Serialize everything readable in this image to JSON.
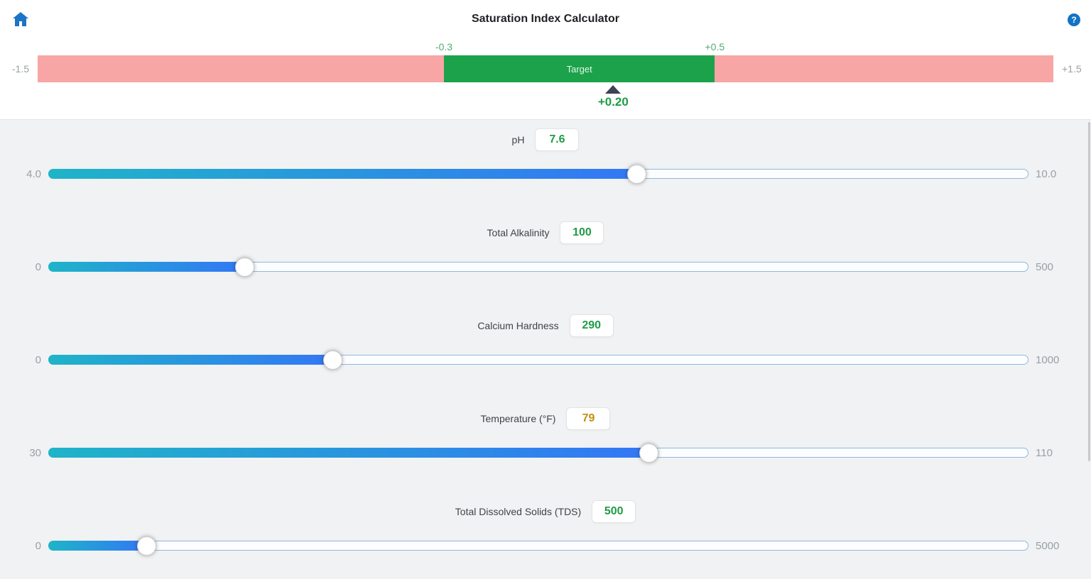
{
  "header": {
    "title": "Saturation Index Calculator",
    "home_icon": "home-icon",
    "help_icon": "help-icon",
    "help_glyph": "?",
    "icon_color": "#1b74c4"
  },
  "si_bar": {
    "min": -1.5,
    "max": 1.5,
    "target_min": -0.3,
    "target_max": 0.5,
    "value": 0.2,
    "min_label": "-1.5",
    "max_label": "+1.5",
    "target_start_label": "-0.3",
    "target_end_label": "+0.5",
    "target_label": "Target",
    "value_label": "+0.20",
    "colors": {
      "out_of_range": "#f8a5a5",
      "target_zone": "#1ca24a",
      "zone_edge_text": "#4faf72",
      "marker": "#3d4354",
      "value_text": "#1e9c46"
    }
  },
  "sliders": [
    {
      "label": "pH",
      "value": "7.6",
      "value_num": 7.6,
      "min": 4.0,
      "max": 10.0,
      "min_label": "4.0",
      "max_label": "10.0",
      "value_color": "#1e9c46"
    },
    {
      "label": "Total Alkalinity",
      "value": "100",
      "value_num": 100,
      "min": 0,
      "max": 500,
      "min_label": "0",
      "max_label": "500",
      "value_color": "#1e9c46"
    },
    {
      "label": "Calcium Hardness",
      "value": "290",
      "value_num": 290,
      "min": 0,
      "max": 1000,
      "min_label": "0",
      "max_label": "1000",
      "value_color": "#1e9c46"
    },
    {
      "label": "Temperature (°F)",
      "value": "79",
      "value_num": 79,
      "min": 30,
      "max": 110,
      "min_label": "30",
      "max_label": "110",
      "value_color": "#c1900f"
    },
    {
      "label": "Total Dissolved Solids (TDS)",
      "value": "500",
      "value_num": 500,
      "min": 0,
      "max": 5000,
      "min_label": "0",
      "max_label": "5000",
      "value_color": "#1e9c46"
    }
  ],
  "slider_track_colors": {
    "fill_start": "#1fb4c8",
    "fill_end": "#3377f5"
  }
}
